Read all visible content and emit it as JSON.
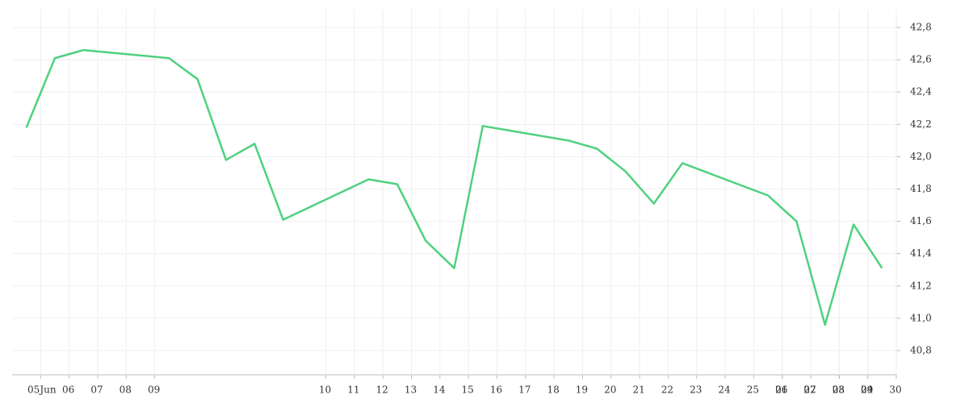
{
  "chart_data": {
    "type": "line",
    "x": [
      -0.5,
      0.5,
      1.5,
      4.5,
      5.5,
      6.5,
      7.5,
      8.5,
      11.5,
      12.5,
      13.5,
      14.5,
      15.5,
      18.5,
      19.5,
      20.5,
      21.5,
      22.5,
      25.5,
      26.5,
      27.5,
      28.5,
      29.5
    ],
    "series": [
      {
        "color": "#4fd17f",
        "values": [
          42.18,
          42.61,
          42.66,
          42.61,
          42.48,
          41.98,
          42.08,
          41.61,
          41.86,
          41.83,
          41.48,
          41.31,
          42.19,
          42.1,
          42.05,
          41.91,
          41.71,
          41.96,
          41.76,
          41.6,
          40.96,
          41.58,
          41.31
        ]
      }
    ],
    "xlim": [
      -1,
      30
    ],
    "xticks": [
      {
        "value": 0,
        "label": "05"
      },
      {
        "value": 1,
        "label": "06"
      },
      {
        "value": 2,
        "label": "07"
      },
      {
        "value": 3,
        "label": "08"
      },
      {
        "value": 4,
        "label": "09"
      },
      10,
      11,
      12,
      13,
      14,
      15,
      16,
      17,
      18,
      19,
      20,
      21,
      22,
      23,
      24,
      25,
      26,
      27,
      28,
      29,
      30,
      {
        "value": 26,
        "label": "01"
      },
      {
        "value": 27,
        "label": "02"
      },
      {
        "value": 28,
        "label": "03"
      },
      {
        "value": 29,
        "label": "04"
      }
    ],
    "month_label": "Jun",
    "ylim": [
      40.65,
      42.91
    ],
    "yticks": [
      {
        "value": 40.8,
        "label": "40,8"
      },
      {
        "value": 41.0,
        "label": "41,0"
      },
      {
        "value": 41.2,
        "label": "41,2"
      },
      {
        "value": 41.4,
        "label": "41,4"
      },
      {
        "value": 41.6,
        "label": "41,6"
      },
      {
        "value": 41.8,
        "label": "41,8"
      },
      {
        "value": 42.0,
        "label": "42,0"
      },
      {
        "value": 42.2,
        "label": "42,2"
      },
      {
        "value": 42.4,
        "label": "42,4"
      },
      {
        "value": 42.6,
        "label": "42,6"
      },
      {
        "value": 42.8,
        "label": "42,8"
      }
    ],
    "grid": true
  }
}
